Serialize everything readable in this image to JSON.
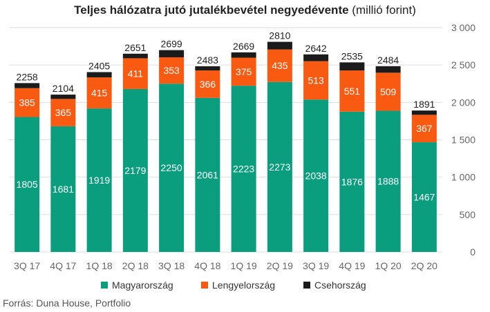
{
  "title": {
    "main": "Teljes hálózatra jutó jutalékbevétel negyedévente",
    "sub": "(millió forint)"
  },
  "source": "Forrás: Duna House, Portfolio",
  "colors": {
    "magyarorszag": "#0a9e7f",
    "lengyelorszag": "#f85a12",
    "csehorszag": "#1b1b1b",
    "grid": "#dddddd",
    "axis_text": "#666666"
  },
  "legend": [
    {
      "label": "Magyarország",
      "color": "#0a9e7f"
    },
    {
      "label": "Lengyelország",
      "color": "#f85a12"
    },
    {
      "label": "Csehország",
      "color": "#1b1b1b"
    }
  ],
  "chart_data": {
    "type": "bar",
    "stacked": true,
    "categories": [
      "3Q 17",
      "4Q 17",
      "1Q 18",
      "2Q 18",
      "3Q 18",
      "4Q 18",
      "1Q 19",
      "2Q 19",
      "3Q 19",
      "4Q 19",
      "1Q 20",
      "2Q 20"
    ],
    "series": [
      {
        "name": "Magyarország",
        "values": [
          1805,
          1681,
          1919,
          2179,
          2250,
          2061,
          2223,
          2273,
          2038,
          1876,
          1888,
          1467
        ]
      },
      {
        "name": "Lengyelország",
        "values": [
          385,
          365,
          415,
          411,
          353,
          366,
          375,
          435,
          513,
          551,
          509,
          367
        ]
      },
      {
        "name": "Csehország",
        "values": [
          68,
          58,
          71,
          61,
          96,
          56,
          71,
          102,
          91,
          108,
          87,
          57
        ]
      }
    ],
    "totals": [
      2258,
      2104,
      2405,
      2651,
      2699,
      2483,
      2669,
      2810,
      2642,
      2535,
      2484,
      1891
    ],
    "yticks": [
      "0",
      "500",
      "1 000",
      "1 500",
      "2 000",
      "2 500",
      "3 000"
    ],
    "ylim": [
      0,
      3000
    ],
    "grid": true,
    "yaxis_position": "right",
    "legend_position": "bottom"
  }
}
